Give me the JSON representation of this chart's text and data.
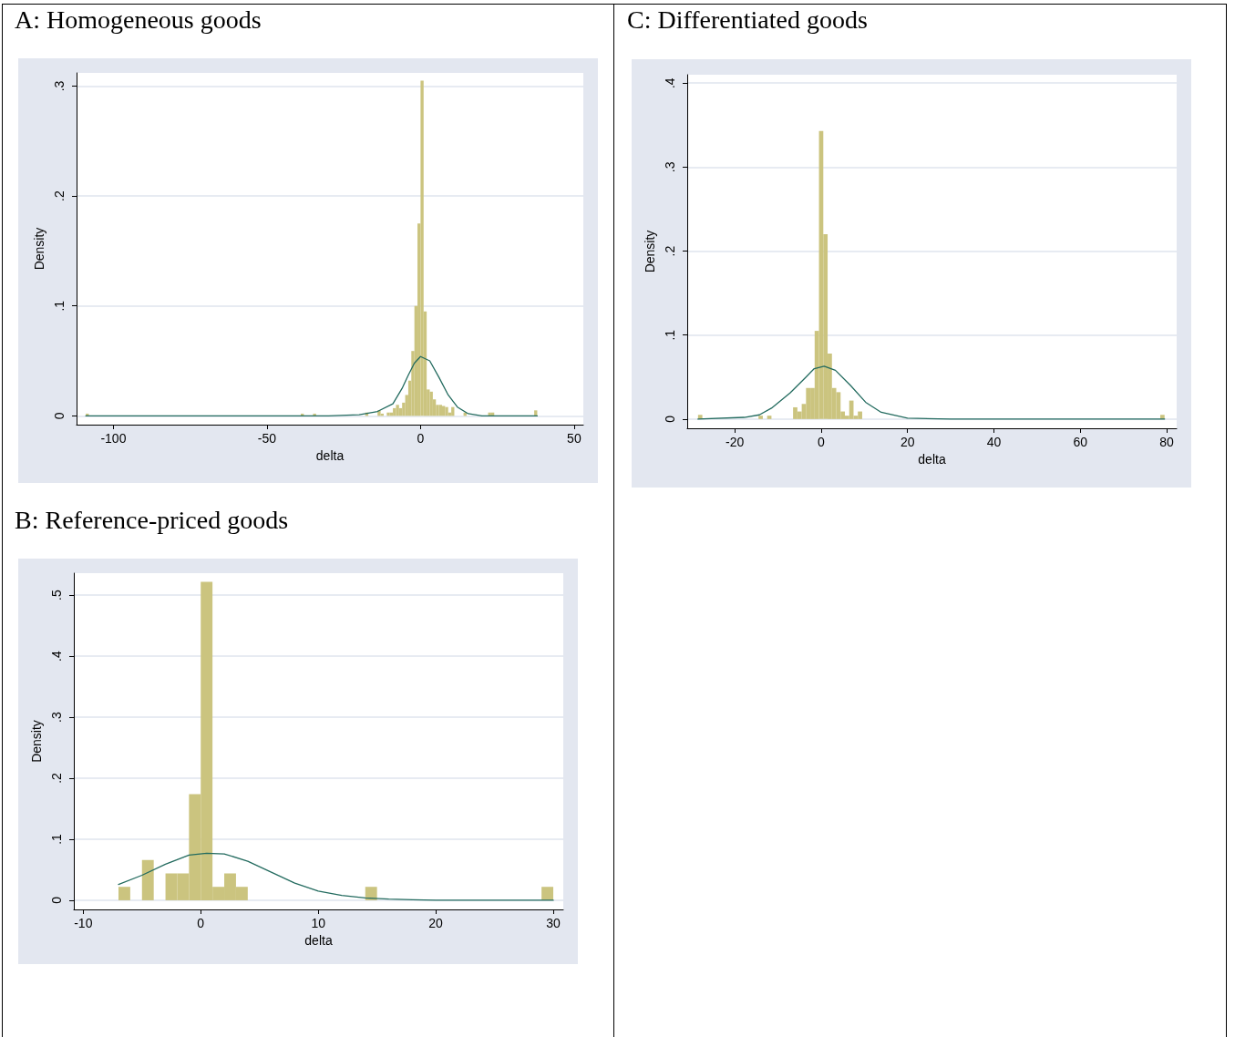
{
  "chart_data": [
    {
      "type": "histogram",
      "title": "A: Homogeneous goods",
      "xlabel": "delta",
      "ylabel": "Density",
      "grid": "y",
      "marker": "none",
      "xlim": [
        -112,
        53
      ],
      "xticks": [
        -100,
        -50,
        0,
        50
      ],
      "ylim": [
        -0.008,
        0.312
      ],
      "yticks": [
        {
          "value": 0,
          "label": "0"
        },
        {
          "value": 0.1,
          "label": ".1"
        },
        {
          "value": 0.2,
          "label": ".2"
        },
        {
          "value": 0.3,
          "label": ".3"
        }
      ],
      "series": [
        {
          "type": "histogram",
          "color": "#cbc47f",
          "bins": [
            -109,
            -108,
            -39,
            -38,
            -35,
            -34,
            -18,
            -17,
            -14,
            -13,
            -12,
            -11,
            -10,
            -9,
            -8,
            -7,
            -6,
            -5,
            -4,
            -3,
            -2,
            -1,
            0,
            1,
            2,
            3,
            4,
            5,
            6,
            7,
            8,
            9,
            10,
            11,
            14,
            15,
            22,
            23,
            24,
            37,
            38
          ],
          "values": [
            0.002,
            0,
            0.002,
            0,
            0.002,
            0,
            0.003,
            0,
            0.005,
            0.002,
            0,
            0.003,
            0.003,
            0.007,
            0.01,
            0.007,
            0.012,
            0.019,
            0.032,
            0.059,
            0.1,
            0.175,
            0.305,
            0.095,
            0.024,
            0.022,
            0.015,
            0.01,
            0.01,
            0.009,
            0.008,
            0.003,
            0.008,
            0,
            0.003,
            0,
            0.003,
            0.003,
            0,
            0.005
          ]
        },
        {
          "type": "line",
          "color": "#236b5f",
          "x": [
            -109,
            -60,
            -30,
            -20,
            -14,
            -9,
            -6,
            -4,
            -2,
            0,
            3,
            6,
            9,
            12,
            15.5,
            20,
            30,
            38
          ],
          "values": [
            0,
            0,
            0,
            0.001,
            0.004,
            0.011,
            0.025,
            0.037,
            0.048,
            0.054,
            0.05,
            0.035,
            0.019,
            0.008,
            0.002,
            0,
            0,
            0
          ]
        }
      ]
    },
    {
      "type": "histogram",
      "title": "C: Differentiated goods",
      "xlabel": "delta",
      "ylabel": "Density",
      "grid": "y",
      "marker": "none",
      "xlim": [
        -31,
        82.3
      ],
      "xticks": [
        -20,
        0,
        20,
        40,
        60,
        80
      ],
      "ylim": [
        -0.011,
        0.41
      ],
      "yticks": [
        {
          "value": 0,
          "label": "0"
        },
        {
          "value": 0.1,
          "label": ".1"
        },
        {
          "value": 0.2,
          "label": ".2"
        },
        {
          "value": 0.3,
          "label": ".3"
        },
        {
          "value": 0.4,
          "label": ".4"
        }
      ],
      "series": [
        {
          "type": "histogram",
          "color": "#cbc47f",
          "bins": [
            -28.5,
            -27.5,
            -14.5,
            -13.5,
            -12.5,
            -11.5,
            -6.5,
            -5.5,
            -4.5,
            -3.5,
            -2.5,
            -1.5,
            -0.5,
            0.5,
            1.5,
            2.5,
            3.5,
            4.5,
            5.5,
            6.5,
            7.5,
            8.5,
            9.5,
            78.5,
            79.5
          ],
          "values": [
            0.005,
            0,
            0.004,
            0,
            0.004,
            0,
            0.014,
            0.009,
            0.018,
            0.037,
            0.037,
            0.105,
            0.343,
            0.22,
            0.078,
            0.037,
            0.032,
            0.009,
            0.004,
            0.022,
            0.004,
            0.009,
            0,
            0.005
          ]
        },
        {
          "type": "line",
          "color": "#236b5f",
          "x": [
            -28.5,
            -17.8,
            -14.3,
            -11.5,
            -7.2,
            -3.7,
            -1.6,
            0.7,
            3.3,
            6.8,
            10.3,
            13.9,
            20,
            30,
            79.5
          ],
          "values": [
            0,
            0.002,
            0.005,
            0.013,
            0.031,
            0.049,
            0.06,
            0.063,
            0.058,
            0.04,
            0.02,
            0.008,
            0.001,
            0,
            0
          ]
        }
      ]
    },
    {
      "type": "histogram",
      "title": "B: Reference-priced goods",
      "xlabel": "delta",
      "ylabel": "Density",
      "grid": "y",
      "marker": "none",
      "xlim": [
        -10.8,
        30.85
      ],
      "xticks": [
        -10,
        0,
        10,
        20,
        30
      ],
      "ylim": [
        -0.015,
        0.536
      ],
      "yticks": [
        {
          "value": 0,
          "label": "0"
        },
        {
          "value": 0.1,
          "label": ".1"
        },
        {
          "value": 0.2,
          "label": ".2"
        },
        {
          "value": 0.3,
          "label": ".3"
        },
        {
          "value": 0.4,
          "label": ".4"
        },
        {
          "value": 0.5,
          "label": ".5"
        }
      ],
      "series": [
        {
          "type": "histogram",
          "color": "#cbc47f",
          "bins": [
            -7,
            -6,
            -5,
            -4,
            -3,
            -2,
            -1,
            0,
            1,
            2,
            3,
            4,
            14,
            15,
            29,
            30
          ],
          "values": [
            0.022,
            0,
            0.066,
            0,
            0.044,
            0.044,
            0.174,
            0.522,
            0.022,
            0.044,
            0.022,
            0,
            0.022,
            0,
            0.022
          ]
        },
        {
          "type": "line",
          "color": "#236b5f",
          "x": [
            -7,
            -5,
            -3,
            -1,
            0.5,
            2,
            4,
            6,
            8,
            10,
            12,
            14,
            16,
            18,
            20,
            25,
            30
          ],
          "values": [
            0.026,
            0.041,
            0.059,
            0.074,
            0.077,
            0.076,
            0.064,
            0.046,
            0.028,
            0.015,
            0.008,
            0.004,
            0.002,
            0.001,
            0,
            0,
            0
          ]
        }
      ]
    }
  ]
}
